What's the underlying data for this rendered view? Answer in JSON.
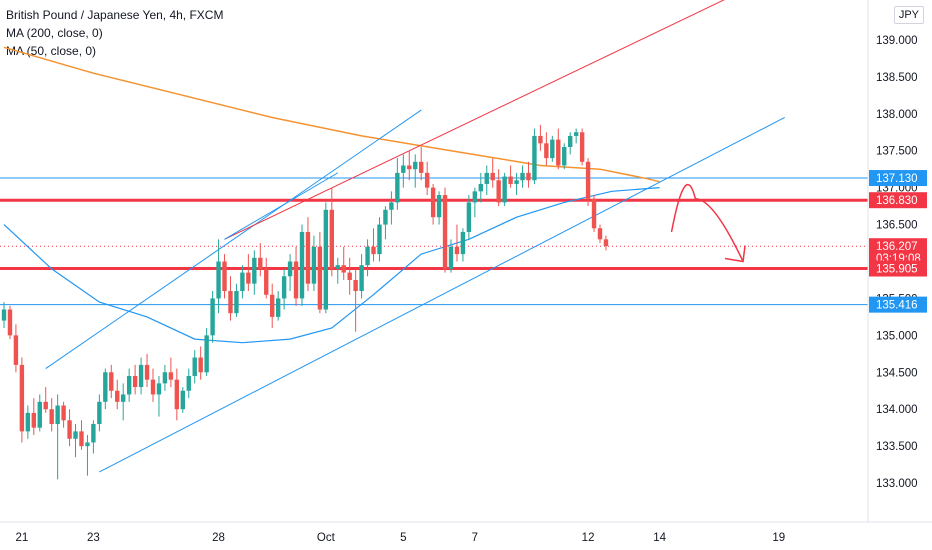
{
  "header": {
    "title": "British Pound / Japanese Yen, 4h, FXCM",
    "ma200": "MA (200, close, 0)",
    "ma50": "MA (50, close, 0)",
    "currency": "JPY"
  },
  "colors": {
    "up": "#26a69a",
    "down": "#ef5350",
    "ma200": "#f5922f",
    "ma50": "#2196f3",
    "blue_line": "#2196f3",
    "red_line": "#f23645",
    "blue_badge": "#2196f3",
    "red_badge": "#f23645"
  },
  "chart_data": {
    "type": "candlestick",
    "symbol": "GBPJPY",
    "interval": "4h",
    "ylim": [
      132.5,
      139.5
    ],
    "y_ticks": [
      "133.000",
      "133.500",
      "134.000",
      "134.500",
      "135.000",
      "135.500",
      "136.000",
      "136.500",
      "137.000",
      "137.500",
      "138.000",
      "138.500",
      "139.000"
    ],
    "x_ticks": [
      {
        "label": "21",
        "i": 3
      },
      {
        "label": "23",
        "i": 15
      },
      {
        "label": "28",
        "i": 36
      },
      {
        "label": "Oct",
        "i": 54
      },
      {
        "label": "5",
        "i": 67
      },
      {
        "label": "7",
        "i": 79
      },
      {
        "label": "12",
        "i": 98
      },
      {
        "label": "14",
        "i": 110
      },
      {
        "label": "19",
        "i": 130
      }
    ],
    "price_labels": [
      {
        "text": "137.130",
        "value": 137.13,
        "color": "blue"
      },
      {
        "text": "136.830",
        "value": 136.83,
        "color": "red"
      },
      {
        "text": "136.207",
        "value": 136.207,
        "color": "red"
      },
      {
        "text": "03:19:08",
        "value": 136.05,
        "color": "red"
      },
      {
        "text": "135.905",
        "value": 135.905,
        "color": "red"
      },
      {
        "text": "135.416",
        "value": 135.416,
        "color": "blue"
      }
    ],
    "horizontal_lines": [
      {
        "value": 137.13,
        "color": "blue",
        "width": 1
      },
      {
        "value": 136.83,
        "color": "red",
        "width": 3
      },
      {
        "value": 135.905,
        "color": "red",
        "width": 3
      },
      {
        "value": 135.416,
        "color": "blue",
        "width": 1
      }
    ],
    "current_price": 136.207,
    "trendlines": [
      {
        "color": "blue",
        "from": [
          16,
          133.15
        ],
        "to": [
          131,
          137.95
        ]
      },
      {
        "color": "blue",
        "from": [
          7,
          134.55
        ],
        "to": [
          70,
          138.05
        ]
      },
      {
        "color": "red",
        "from": [
          37,
          136.3
        ],
        "to": [
          121,
          139.55
        ]
      },
      {
        "color": "blue",
        "from": [
          37,
          136.3
        ],
        "to": [
          56,
          137.2
        ]
      }
    ],
    "projection_arrow": {
      "color": "red",
      "points": [
        [
          112,
          136.4
        ],
        [
          116,
          136.85
        ],
        [
          124,
          136.0
        ]
      ]
    },
    "ma200": [
      [
        0,
        138.9
      ],
      [
        15,
        138.55
      ],
      [
        30,
        138.25
      ],
      [
        45,
        137.95
      ],
      [
        60,
        137.7
      ],
      [
        75,
        137.5
      ],
      [
        90,
        137.3
      ],
      [
        100,
        137.25
      ],
      [
        108,
        137.12
      ],
      [
        110,
        137.08
      ]
    ],
    "ma50": [
      [
        0,
        136.5
      ],
      [
        8,
        135.9
      ],
      [
        16,
        135.45
      ],
      [
        24,
        135.25
      ],
      [
        32,
        134.95
      ],
      [
        40,
        134.9
      ],
      [
        48,
        134.95
      ],
      [
        55,
        135.1
      ],
      [
        62,
        135.55
      ],
      [
        70,
        136.1
      ],
      [
        78,
        136.3
      ],
      [
        86,
        136.6
      ],
      [
        94,
        136.8
      ],
      [
        102,
        136.95
      ],
      [
        110,
        137.0
      ]
    ],
    "candles": [
      [
        135.2,
        135.45,
        135.1,
        135.35
      ],
      [
        135.35,
        135.4,
        134.95,
        135.0
      ],
      [
        135.0,
        135.15,
        134.5,
        134.6
      ],
      [
        134.6,
        134.7,
        133.55,
        133.7
      ],
      [
        133.7,
        134.05,
        133.6,
        133.95
      ],
      [
        133.95,
        134.15,
        133.65,
        133.75
      ],
      [
        133.75,
        134.2,
        133.7,
        134.1
      ],
      [
        134.1,
        134.3,
        133.95,
        134.0
      ],
      [
        134.0,
        134.15,
        133.7,
        133.8
      ],
      [
        133.8,
        134.2,
        133.05,
        134.05
      ],
      [
        134.05,
        134.1,
        133.75,
        133.85
      ],
      [
        133.85,
        134.0,
        133.5,
        133.6
      ],
      [
        133.6,
        133.8,
        133.35,
        133.7
      ],
      [
        133.7,
        133.85,
        133.45,
        133.5
      ],
      [
        133.5,
        133.65,
        133.1,
        133.55
      ],
      [
        133.55,
        133.85,
        133.4,
        133.8
      ],
      [
        133.8,
        134.2,
        133.7,
        134.1
      ],
      [
        134.1,
        134.55,
        134.0,
        134.5
      ],
      [
        134.5,
        134.6,
        134.15,
        134.25
      ],
      [
        134.25,
        134.4,
        134.0,
        134.1
      ],
      [
        134.1,
        134.35,
        133.85,
        134.2
      ],
      [
        134.2,
        134.55,
        134.1,
        134.45
      ],
      [
        134.45,
        134.6,
        134.2,
        134.3
      ],
      [
        134.3,
        134.7,
        134.2,
        134.6
      ],
      [
        134.6,
        134.75,
        134.3,
        134.4
      ],
      [
        134.4,
        134.55,
        134.1,
        134.2
      ],
      [
        134.2,
        134.45,
        133.9,
        134.35
      ],
      [
        134.35,
        134.6,
        134.25,
        134.5
      ],
      [
        134.5,
        134.7,
        134.3,
        134.4
      ],
      [
        134.4,
        134.55,
        133.85,
        134.0
      ],
      [
        134.0,
        134.3,
        133.95,
        134.25
      ],
      [
        134.25,
        134.55,
        134.15,
        134.45
      ],
      [
        134.45,
        134.8,
        134.35,
        134.7
      ],
      [
        134.7,
        134.85,
        134.4,
        134.5
      ],
      [
        134.5,
        135.1,
        134.45,
        135.0
      ],
      [
        135.0,
        135.6,
        134.9,
        135.5
      ],
      [
        135.5,
        136.3,
        135.3,
        136.0
      ],
      [
        136.0,
        136.1,
        135.5,
        135.6
      ],
      [
        135.6,
        135.8,
        135.2,
        135.3
      ],
      [
        135.3,
        135.7,
        135.25,
        135.6
      ],
      [
        135.6,
        135.95,
        135.5,
        135.85
      ],
      [
        135.85,
        136.1,
        135.6,
        135.7
      ],
      [
        135.7,
        136.15,
        135.55,
        136.05
      ],
      [
        136.05,
        136.25,
        135.8,
        135.9
      ],
      [
        135.9,
        136.05,
        135.5,
        135.55
      ],
      [
        135.55,
        135.7,
        135.1,
        135.25
      ],
      [
        135.25,
        135.6,
        135.2,
        135.5
      ],
      [
        135.5,
        135.9,
        135.35,
        135.8
      ],
      [
        135.8,
        136.1,
        135.6,
        136.0
      ],
      [
        136.0,
        136.2,
        135.4,
        135.5
      ],
      [
        135.5,
        136.5,
        135.4,
        136.4
      ],
      [
        136.4,
        136.6,
        135.6,
        135.7
      ],
      [
        135.7,
        136.35,
        135.6,
        136.2
      ],
      [
        136.2,
        136.4,
        135.3,
        135.35
      ],
      [
        135.35,
        136.8,
        135.3,
        136.7
      ],
      [
        136.7,
        137.0,
        135.8,
        135.9
      ],
      [
        135.9,
        136.05,
        135.7,
        135.95
      ],
      [
        135.95,
        136.2,
        135.75,
        135.85
      ],
      [
        135.85,
        136.05,
        135.55,
        135.75
      ],
      [
        135.75,
        135.9,
        135.05,
        135.6
      ],
      [
        135.6,
        136.1,
        135.5,
        135.95
      ],
      [
        135.95,
        136.3,
        135.8,
        136.2
      ],
      [
        136.2,
        136.45,
        136.0,
        136.1
      ],
      [
        136.1,
        136.6,
        136.0,
        136.5
      ],
      [
        136.5,
        136.75,
        136.3,
        136.7
      ],
      [
        136.7,
        136.95,
        136.5,
        136.8
      ],
      [
        136.8,
        137.4,
        136.7,
        137.2
      ],
      [
        137.2,
        137.45,
        137.0,
        137.3
      ],
      [
        137.3,
        137.5,
        137.1,
        137.25
      ],
      [
        137.25,
        137.45,
        137.0,
        137.35
      ],
      [
        137.35,
        137.55,
        137.1,
        137.2
      ],
      [
        137.2,
        137.35,
        136.9,
        137.0
      ],
      [
        137.0,
        137.05,
        136.5,
        136.6
      ],
      [
        136.6,
        136.95,
        136.5,
        136.9
      ],
      [
        136.9,
        137.0,
        135.85,
        135.9
      ],
      [
        135.9,
        136.3,
        135.85,
        136.2
      ],
      [
        136.2,
        136.5,
        136.0,
        136.1
      ],
      [
        136.1,
        136.45,
        136.0,
        136.4
      ],
      [
        136.4,
        136.9,
        136.3,
        136.8
      ],
      [
        136.8,
        137.0,
        136.6,
        136.95
      ],
      [
        136.95,
        137.2,
        136.8,
        137.05
      ],
      [
        137.05,
        137.3,
        136.9,
        137.2
      ],
      [
        137.2,
        137.4,
        137.0,
        137.1
      ],
      [
        137.1,
        137.25,
        136.75,
        136.8
      ],
      [
        136.8,
        137.2,
        136.75,
        137.15
      ],
      [
        137.15,
        137.3,
        137.0,
        137.05
      ],
      [
        137.05,
        137.2,
        136.9,
        137.1
      ],
      [
        137.1,
        137.3,
        137.0,
        137.2
      ],
      [
        137.2,
        137.35,
        137.0,
        137.1
      ],
      [
        137.1,
        137.8,
        137.05,
        137.7
      ],
      [
        137.7,
        137.85,
        137.5,
        137.6
      ],
      [
        137.6,
        137.75,
        137.3,
        137.4
      ],
      [
        137.4,
        137.7,
        137.35,
        137.65
      ],
      [
        137.65,
        137.8,
        137.25,
        137.3
      ],
      [
        137.3,
        137.6,
        137.25,
        137.55
      ],
      [
        137.55,
        137.75,
        137.45,
        137.7
      ],
      [
        137.7,
        137.8,
        137.6,
        137.75
      ],
      [
        137.75,
        137.8,
        137.3,
        137.35
      ],
      [
        137.35,
        137.4,
        136.75,
        136.85
      ],
      [
        136.85,
        136.9,
        136.4,
        136.45
      ],
      [
        136.45,
        136.5,
        136.25,
        136.3
      ],
      [
        136.3,
        136.35,
        136.15,
        136.21
      ]
    ]
  }
}
